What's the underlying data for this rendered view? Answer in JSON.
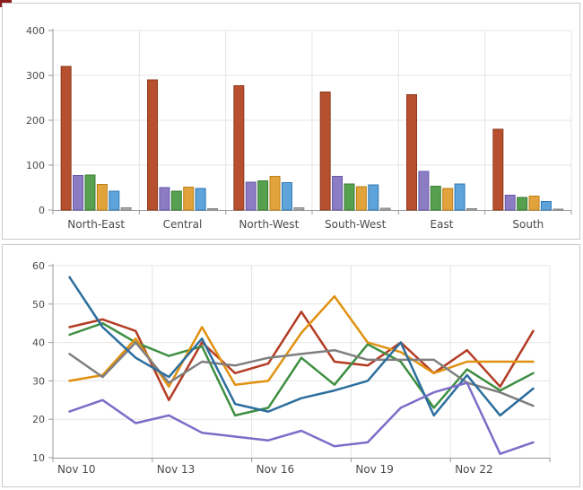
{
  "page": {
    "corner_marker_color": "#8b1e1e"
  },
  "theme": {
    "panel_bg": "#ffffff",
    "panel_border": "#c9c9c9",
    "grid_color": "#e4e4e4",
    "axis_color": "#9b9b9b",
    "tick_color": "#9b9b9b",
    "label_color": "#4a4a4a"
  },
  "chart_data": [
    {
      "type": "bar",
      "title": "",
      "xlabel": "",
      "ylabel": "",
      "ylim": [
        0,
        400
      ],
      "y_ticks": [
        0,
        100,
        200,
        300,
        400
      ],
      "grid": true,
      "legend": "none",
      "categories": [
        "North-East",
        "Central",
        "North-West",
        "South-West",
        "East",
        "South"
      ],
      "series": [
        {
          "name": "red",
          "color": "#b7502e",
          "stroke": "#8e3a1c",
          "values": [
            320,
            290,
            277,
            263,
            257,
            180
          ]
        },
        {
          "name": "purple",
          "color": "#8b7cc4",
          "stroke": "#6757a8",
          "values": [
            77,
            50,
            62,
            75,
            86,
            33
          ]
        },
        {
          "name": "green",
          "color": "#56a04f",
          "stroke": "#3a7d33",
          "values": [
            78,
            42,
            65,
            58,
            53,
            28
          ]
        },
        {
          "name": "orange",
          "color": "#e2a33c",
          "stroke": "#bd7f15",
          "values": [
            57,
            51,
            75,
            52,
            48,
            31
          ]
        },
        {
          "name": "blue",
          "color": "#5ea3da",
          "stroke": "#3178b3",
          "values": [
            42,
            48,
            61,
            56,
            58,
            19
          ]
        },
        {
          "name": "gray",
          "color": "#a9a9a9",
          "stroke": "#8a8a8a",
          "values": [
            5,
            3,
            5,
            4,
            3,
            2
          ]
        }
      ]
    },
    {
      "type": "line",
      "title": "",
      "xlabel": "",
      "ylabel": "",
      "ylim": [
        10,
        60
      ],
      "y_ticks": [
        10,
        20,
        30,
        40,
        50,
        60
      ],
      "grid": true,
      "legend": "none",
      "label_every": 3,
      "x": [
        "Nov 10",
        "Nov 11",
        "Nov 12",
        "Nov 13",
        "Nov 14",
        "Nov 15",
        "Nov 16",
        "Nov 17",
        "Nov 18",
        "Nov 19",
        "Nov 20",
        "Nov 21",
        "Nov 22",
        "Nov 23",
        "Nov 24"
      ],
      "visible_x_labels": [
        "Nov 10",
        "Nov 13",
        "Nov 16",
        "Nov 19",
        "Nov 22"
      ],
      "series": [
        {
          "name": "red",
          "color": "#b43c24",
          "values": [
            44,
            46,
            43,
            25,
            40,
            32,
            34.5,
            48,
            35,
            34,
            40,
            32,
            38,
            28.5,
            43
          ]
        },
        {
          "name": "green",
          "color": "#3e8e41",
          "values": [
            42,
            45,
            40,
            36.5,
            39,
            21,
            23,
            36,
            29,
            39.5,
            35,
            23,
            33,
            27.5,
            32
          ]
        },
        {
          "name": "orange",
          "color": "#e0910f",
          "values": [
            30,
            31.5,
            41,
            28.5,
            44,
            29,
            30,
            42.5,
            52,
            40,
            37.5,
            32,
            35,
            35,
            35
          ]
        },
        {
          "name": "gray",
          "color": "#7f7f7f",
          "values": [
            37,
            31,
            40,
            29.5,
            35,
            34,
            36,
            37,
            38,
            35.5,
            35.5,
            35.5,
            29.5,
            27,
            23.5
          ]
        },
        {
          "name": "blue",
          "color": "#2c6e9e",
          "values": [
            57,
            44,
            36,
            31,
            41,
            24,
            22,
            25.5,
            27.5,
            30,
            40,
            21,
            31.5,
            21,
            28
          ]
        },
        {
          "name": "purple",
          "color": "#7e6cc8",
          "values": [
            22,
            25,
            19,
            21,
            16.5,
            15.5,
            14.5,
            17,
            13,
            14,
            23,
            27,
            29.5,
            11,
            14
          ]
        }
      ]
    }
  ]
}
